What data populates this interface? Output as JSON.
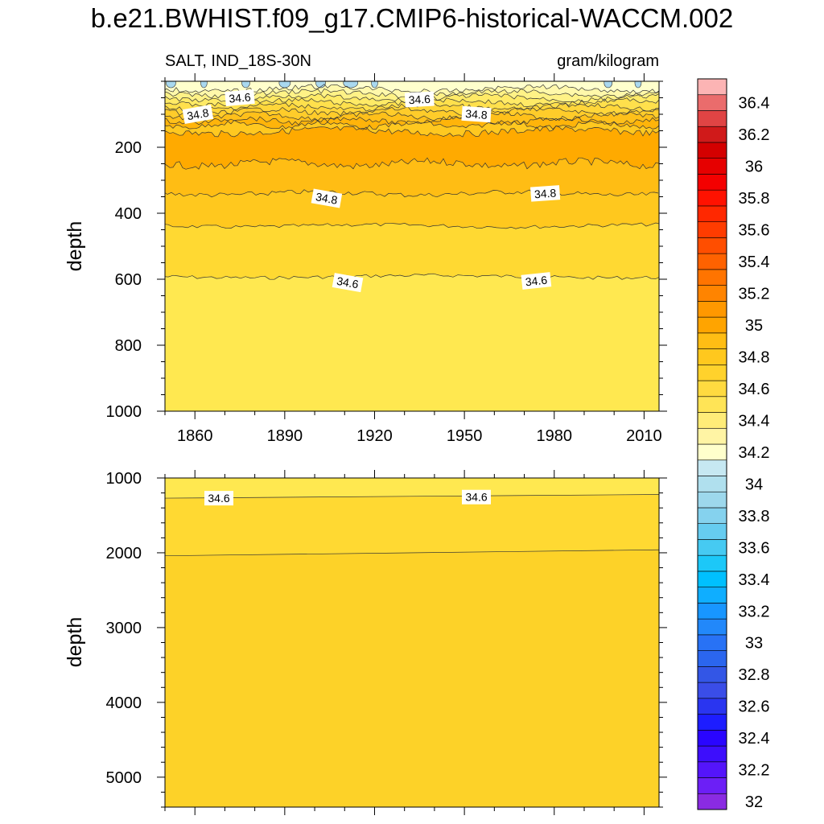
{
  "figure": {
    "title": "b.e21.BWHIST.f09_g17.CMIP6-historical-WACCM.002",
    "variable_label": "SALT, IND_18S-30N",
    "units_label": "gram/kilogram"
  },
  "chart_data": [
    {
      "type": "heatmap",
      "subtype": "depth-time filled contour",
      "panel": "upper",
      "x_range": [
        1850,
        2015
      ],
      "x_ticks": [
        "1860",
        "1890",
        "1920",
        "1950",
        "1980",
        "2010"
      ],
      "x_tick_values": [
        1860,
        1890,
        1920,
        1950,
        1980,
        2010
      ],
      "ylabel": "depth",
      "y_range": [
        0,
        1000
      ],
      "y_inverted": true,
      "y_ticks": [
        "200",
        "400",
        "600",
        "800",
        "1000"
      ],
      "y_tick_values": [
        200,
        400,
        600,
        800,
        1000
      ],
      "contour_interval": 0.1,
      "contour_lines": [
        {
          "level": 34.6,
          "depth": 592
        },
        {
          "level": 34.7,
          "depth": 438
        },
        {
          "level": 34.8,
          "depth": 340
        },
        {
          "level": 34.9,
          "depth": 255
        },
        {
          "level": 34.9,
          "depth": 152
        }
      ],
      "contour_labels": [
        {
          "text": "34.8",
          "x": 1861,
          "depth": 100
        },
        {
          "text": "34.6",
          "x": 1875,
          "depth": 50
        },
        {
          "text": "34.6",
          "x": 1935,
          "depth": 55
        },
        {
          "text": "34.8",
          "x": 1954,
          "depth": 100
        },
        {
          "text": "34.8",
          "x": 1904,
          "depth": 355
        },
        {
          "text": "34.8",
          "x": 1977,
          "depth": 340
        },
        {
          "text": "34.6",
          "x": 1911,
          "depth": 610
        },
        {
          "text": "34.6",
          "x": 1974,
          "depth": 605
        }
      ]
    },
    {
      "type": "heatmap",
      "subtype": "depth-time filled contour",
      "panel": "lower",
      "x_range": [
        1850,
        2015
      ],
      "ylabel": "depth",
      "y_range": [
        1000,
        5400
      ],
      "y_inverted": true,
      "y_ticks": [
        "1000",
        "2000",
        "3000",
        "4000",
        "5000"
      ],
      "y_tick_values": [
        1000,
        2000,
        3000,
        4000,
        5000
      ],
      "contour_lines": [
        {
          "level": 34.6,
          "depth_start": 1270,
          "depth_end": 1220
        },
        {
          "level": 34.7,
          "depth_start": 2040,
          "depth_end": 1960
        }
      ],
      "contour_labels": [
        {
          "text": "34.6",
          "x": 1868,
          "depth": 1270
        },
        {
          "text": "34.6",
          "x": 1954,
          "depth": 1255
        }
      ]
    }
  ],
  "colorbar": {
    "levels": [
      32,
      32.1,
      32.2,
      32.3,
      32.4,
      32.5,
      32.6,
      32.7,
      32.8,
      32.9,
      33,
      33.1,
      33.2,
      33.3,
      33.4,
      33.5,
      33.6,
      33.7,
      33.8,
      33.9,
      34,
      34.1,
      34.2,
      34.3,
      34.4,
      34.5,
      34.6,
      34.7,
      34.8,
      34.9,
      35,
      35.1,
      35.2,
      35.3,
      35.4,
      35.5,
      35.6,
      35.7,
      35.8,
      35.9,
      36,
      36.1,
      36.2,
      36.3,
      36.4,
      36.5
    ],
    "colors": [
      "#8a2be2",
      "#6c1ff6",
      "#5415fb",
      "#3d0efc",
      "#2a05ff",
      "#1d1dff",
      "#2a35f0",
      "#3a4de8",
      "#3356e6",
      "#2b66ee",
      "#2872f5",
      "#2288fa",
      "#1896ff",
      "#0faeff",
      "#00c0ff",
      "#1cc8f8",
      "#46caf2",
      "#66ccf0",
      "#85d2ee",
      "#9dd8ec",
      "#b0e0ee",
      "#c6e8f2",
      "#ffffcc",
      "#fff4a4",
      "#ffec78",
      "#ffe456",
      "#ffda40",
      "#ffd22c",
      "#ffc81e",
      "#ffbd14",
      "#ffa400",
      "#ff9800",
      "#ff8400",
      "#ff7400",
      "#ff6200",
      "#ff4e00",
      "#ff3c00",
      "#ff2800",
      "#ff1200",
      "#f40000",
      "#e60000",
      "#d40000",
      "#d01a1a",
      "#e04444",
      "#ea6c6c",
      "#fcb4b4"
    ],
    "labels": [
      "32",
      "32.2",
      "32.4",
      "32.6",
      "32.8",
      "33",
      "33.2",
      "33.4",
      "33.6",
      "33.8",
      "34",
      "34.2",
      "34.4",
      "34.6",
      "34.8",
      "35",
      "35.2",
      "35.4",
      "35.6",
      "35.8",
      "36",
      "36.2",
      "36.4"
    ]
  }
}
